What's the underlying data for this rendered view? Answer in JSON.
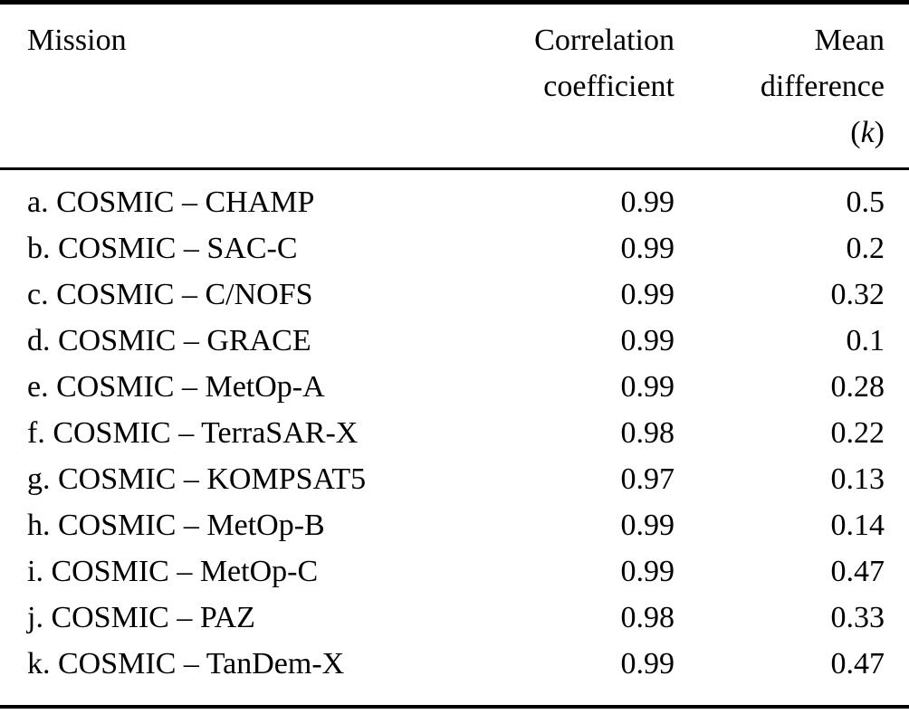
{
  "page": {
    "background_color": "#ffffff",
    "text_color": "#000000",
    "rule_color": "#000000"
  },
  "table": {
    "header": {
      "mission": "Mission",
      "correlation_line1": "Correlation",
      "correlation_line2": "coefficient",
      "mean_line1": "Mean",
      "mean_line2": "difference",
      "unit_open": "(",
      "unit_symbol": "k",
      "unit_close": ")"
    },
    "rows": [
      {
        "mission": "a. COSMIC – CHAMP",
        "correlation": "0.99",
        "mean_difference": "0.5"
      },
      {
        "mission": "b. COSMIC – SAC-C",
        "correlation": "0.99",
        "mean_difference": "0.2"
      },
      {
        "mission": "c. COSMIC – C/NOFS",
        "correlation": "0.99",
        "mean_difference": "0.32"
      },
      {
        "mission": "d. COSMIC – GRACE",
        "correlation": "0.99",
        "mean_difference": "0.1"
      },
      {
        "mission": "e. COSMIC – MetOp-A",
        "correlation": "0.99",
        "mean_difference": "0.28"
      },
      {
        "mission": "f. COSMIC – TerraSAR-X",
        "correlation": "0.98",
        "mean_difference": "0.22"
      },
      {
        "mission": "g. COSMIC – KOMPSAT5",
        "correlation": "0.97",
        "mean_difference": "0.13"
      },
      {
        "mission": "h. COSMIC – MetOp-B",
        "correlation": "0.99",
        "mean_difference": "0.14"
      },
      {
        "mission": "i. COSMIC – MetOp-C",
        "correlation": "0.99",
        "mean_difference": "0.47"
      },
      {
        "mission": "j. COSMIC – PAZ",
        "correlation": "0.98",
        "mean_difference": "0.33"
      },
      {
        "mission": "k. COSMIC – TanDem-X",
        "correlation": "0.99",
        "mean_difference": "0.47"
      }
    ]
  }
}
